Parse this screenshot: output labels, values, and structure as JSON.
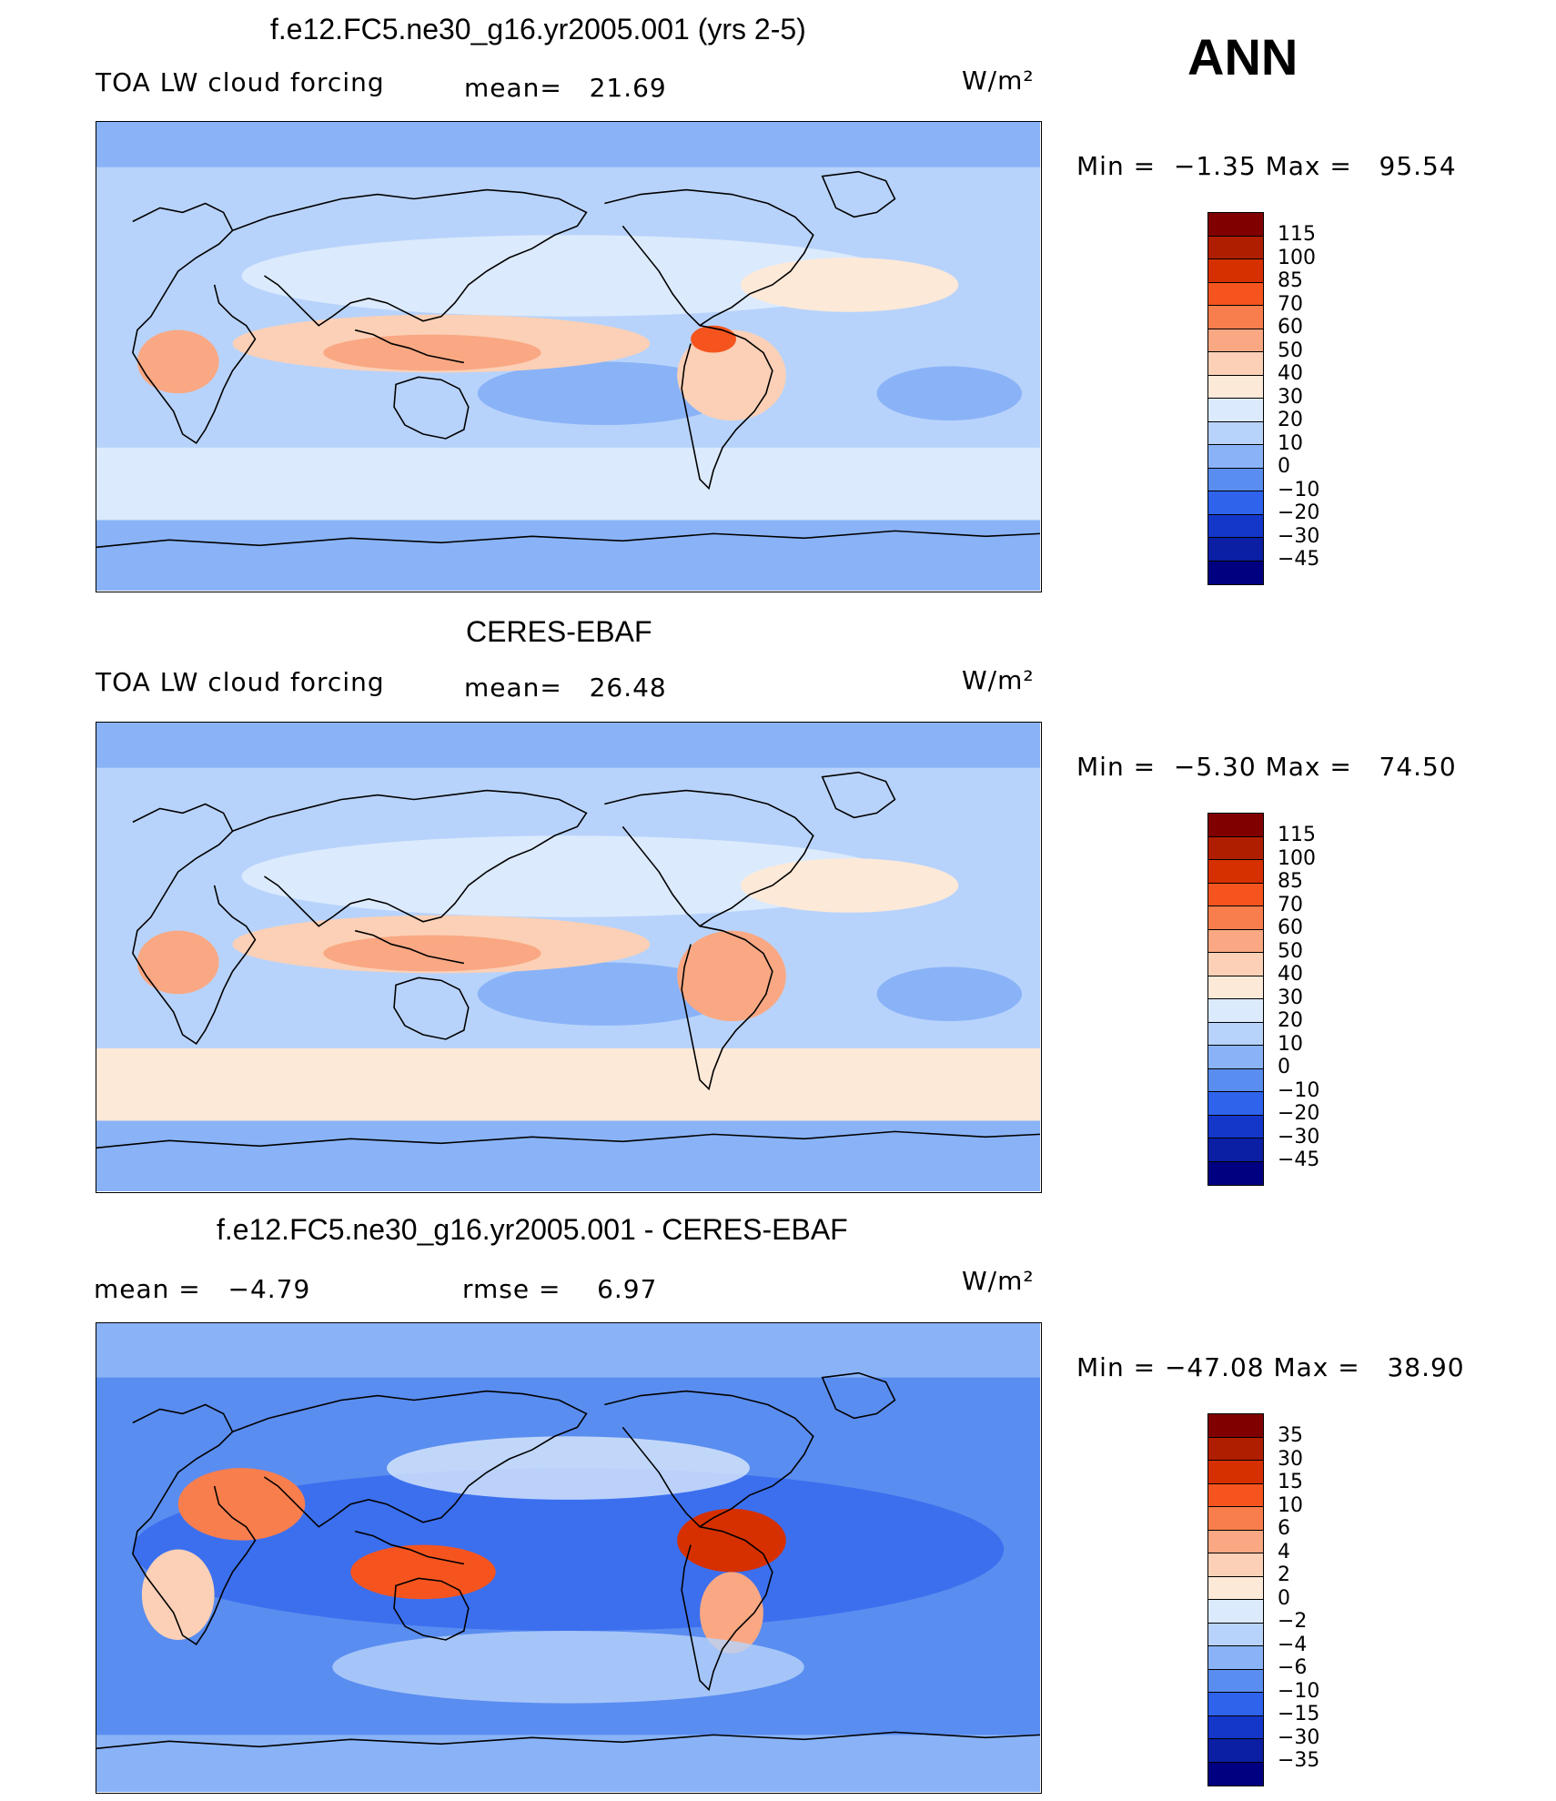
{
  "season": "ANN",
  "panels": [
    {
      "title": "f.e12.FC5.ne30_g16.yr2005.001 (yrs 2-5)",
      "left_label": "TOA LW cloud forcing",
      "mid_label": "mean=",
      "mid_value": "21.69",
      "units": "W/m²",
      "min_label": "Min =",
      "min_value": "−1.35",
      "max_label": "Max =",
      "max_value": "95.54",
      "colorbar": {
        "labels": [
          "115",
          "100",
          "85",
          "70",
          "60",
          "50",
          "40",
          "30",
          "20",
          "10",
          "0",
          "−10",
          "−20",
          "−30",
          "−45"
        ],
        "colors": [
          "#800000",
          "#b01e00",
          "#d63000",
          "#f5541f",
          "#f87e4d",
          "#f9a883",
          "#fbd0b6",
          "#fde9d8",
          "#dbeafd",
          "#b8d3fb",
          "#8ab3f7",
          "#5a8df0",
          "#2f63ec",
          "#1437c9",
          "#0a1fa3",
          "#000080"
        ]
      },
      "map_style": "model"
    },
    {
      "title": "CERES-EBAF",
      "left_label": "TOA LW cloud forcing",
      "mid_label": "mean=",
      "mid_value": "26.48",
      "units": "W/m²",
      "min_label": "Min =",
      "min_value": "−5.30",
      "max_label": "Max =",
      "max_value": "74.50",
      "colorbar": {
        "labels": [
          "115",
          "100",
          "85",
          "70",
          "60",
          "50",
          "40",
          "30",
          "20",
          "10",
          "0",
          "−10",
          "−20",
          "−30",
          "−45"
        ],
        "colors": [
          "#800000",
          "#b01e00",
          "#d63000",
          "#f5541f",
          "#f87e4d",
          "#f9a883",
          "#fbd0b6",
          "#fde9d8",
          "#dbeafd",
          "#b8d3fb",
          "#8ab3f7",
          "#5a8df0",
          "#2f63ec",
          "#1437c9",
          "#0a1fa3",
          "#000080"
        ]
      },
      "map_style": "obs"
    },
    {
      "title": "f.e12.FC5.ne30_g16.yr2005.001 - CERES-EBAF",
      "left_label": "mean =",
      "left_value": "−4.79",
      "mid_label": "rmse =",
      "mid_value": "6.97",
      "units": "W/m²",
      "min_label": "Min =",
      "min_value": "−47.08",
      "max_label": "Max =",
      "max_value": "38.90",
      "colorbar": {
        "labels": [
          "35",
          "30",
          "15",
          "10",
          "6",
          "4",
          "2",
          "0",
          "−2",
          "−4",
          "−6",
          "−10",
          "−15",
          "−30",
          "−35"
        ],
        "colors": [
          "#800000",
          "#b01e00",
          "#d63000",
          "#f5541f",
          "#f87e4d",
          "#f9a883",
          "#fbd0b6",
          "#fde9d8",
          "#dbeafd",
          "#b8d3fb",
          "#8ab3f7",
          "#5a8df0",
          "#2f63ec",
          "#1437c9",
          "#0a1fa3",
          "#000080"
        ]
      },
      "map_style": "diff"
    }
  ]
}
